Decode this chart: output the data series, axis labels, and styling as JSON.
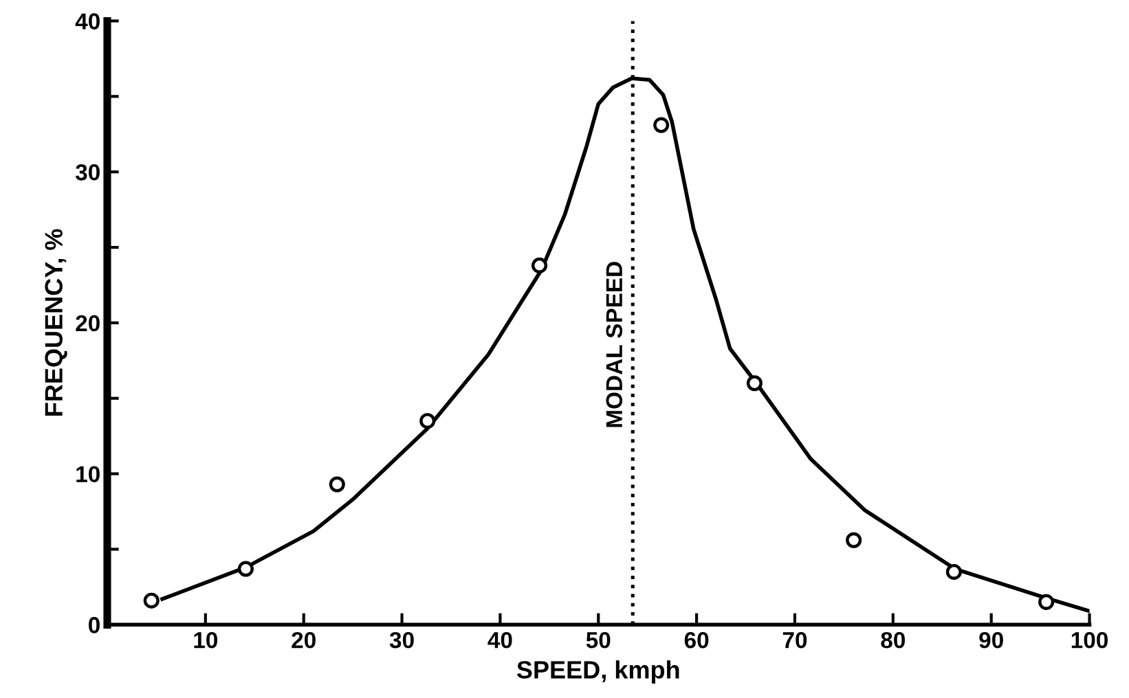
{
  "chart_data": {
    "type": "scatter",
    "xlabel": "SPEED, kmph",
    "ylabel": "FREQUENCY, %",
    "xlim": [
      0,
      100
    ],
    "ylim": [
      0,
      40
    ],
    "xticks": [
      10,
      20,
      30,
      40,
      50,
      60,
      70,
      80,
      90,
      100
    ],
    "yticks": [
      0,
      {
        "value": 5,
        "label": null
      },
      10,
      {
        "value": 15,
        "label": null
      },
      20,
      {
        "value": 25,
        "label": null
      },
      30,
      {
        "value": 35,
        "label": null
      },
      40
    ],
    "grid": false,
    "legend": false,
    "series": [
      {
        "marker": "circle",
        "color": "#000000",
        "x": [
          4.5,
          14.1,
          23.4,
          32.6,
          44,
          56.4,
          65.9,
          76,
          86.2,
          95.6
        ],
        "values": [
          1.6,
          3.7,
          9.3,
          13.5,
          23.8,
          33.1,
          16,
          5.6,
          3.5,
          1.5
        ]
      },
      {
        "type": "line",
        "marker": "none",
        "line_style": "solid",
        "color": "#000000",
        "x": [
          5.6,
          14.1,
          21,
          25,
          32.6,
          38.8,
          44.2,
          46.6,
          48.8,
          50,
          51.5,
          53.4,
          55.2,
          56.6,
          57.5,
          59.7,
          62,
          63.4,
          66.2,
          71.6,
          77.1,
          86.3,
          95.9,
          100
        ],
        "values": [
          1.7,
          3.8,
          6.2,
          8.3,
          13,
          17.9,
          23.5,
          27.2,
          31.7,
          34.5,
          35.6,
          36.2,
          36.1,
          35.1,
          33.3,
          26.2,
          21.5,
          18.3,
          15.9,
          11,
          7.6,
          3.7,
          1.7,
          0.9
        ]
      }
    ],
    "ref_lines": [
      {
        "axis": "x",
        "value": 53.5,
        "label": "MODAL SPEED",
        "line_style": "dotted",
        "color": "#000000"
      }
    ]
  }
}
